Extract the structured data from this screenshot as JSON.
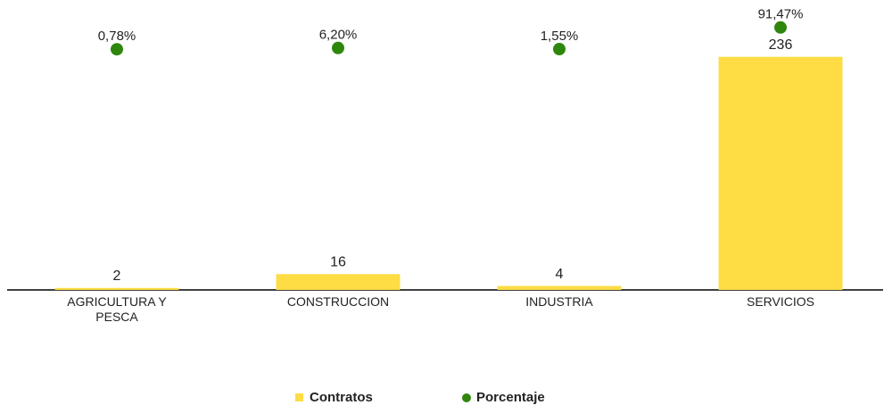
{
  "chart_data": {
    "type": "bar_dot",
    "categories": [
      "AGRICULTURA Y PESCA",
      "CONSTRUCCION",
      "INDUSTRIA",
      "SERVICIOS"
    ],
    "series": [
      {
        "name": "Contratos",
        "color": "#fddc44",
        "values": [
          2,
          16,
          4,
          236
        ]
      },
      {
        "name": "Porcentaje",
        "color": "#2e870c",
        "axis": "y2",
        "values": [
          0.78,
          6.2,
          1.55,
          91.47
        ],
        "value_labels": [
          "0,78%",
          "6,20%",
          "1,55%",
          "91,47%"
        ]
      }
    ],
    "ylim": [
      0,
      280
    ],
    "y2lim": [
      -1000,
      150
    ],
    "legend": "bottom"
  }
}
